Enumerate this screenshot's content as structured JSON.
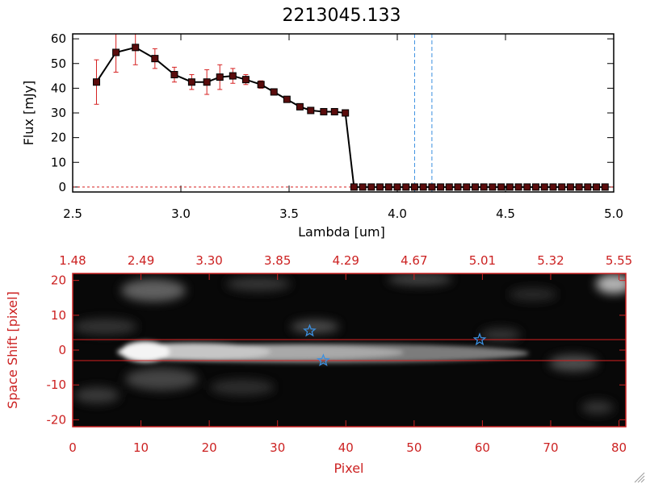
{
  "chart_data": [
    {
      "type": "line",
      "title": "2213045.133",
      "xlabel": "Lambda [um]",
      "ylabel": "Flux [mJy]",
      "xlim": [
        2.5,
        5.0
      ],
      "ylim": [
        -2,
        62
      ],
      "x_ticks": [
        "2.5",
        "3.0",
        "3.5",
        "4.0",
        "4.5",
        "5.0"
      ],
      "y_ticks": [
        "0",
        "10",
        "20",
        "30",
        "40",
        "50",
        "60"
      ],
      "series": [
        {
          "x": [
            2.61,
            2.7,
            2.79,
            2.88,
            2.97,
            3.05,
            3.12,
            3.18,
            3.24,
            3.3,
            3.37,
            3.43,
            3.49,
            3.55,
            3.6,
            3.66,
            3.71,
            3.76,
            3.8,
            3.84,
            3.88,
            3.92,
            3.96,
            4.0,
            4.04,
            4.08,
            4.12,
            4.16,
            4.2,
            4.24,
            4.28,
            4.32,
            4.36,
            4.4,
            4.44,
            4.48,
            4.52,
            4.56,
            4.6,
            4.64,
            4.68,
            4.72,
            4.76,
            4.8,
            4.84,
            4.88,
            4.92,
            4.96
          ],
          "y": [
            42.5,
            54.5,
            56.5,
            52.0,
            45.5,
            42.5,
            42.5,
            44.5,
            45.0,
            43.5,
            41.5,
            38.5,
            35.5,
            32.5,
            31.0,
            30.5,
            30.5,
            30.0,
            0,
            0,
            0,
            0,
            0,
            0,
            0,
            0,
            0,
            0,
            0,
            0,
            0,
            0,
            0,
            0,
            0,
            0,
            0,
            0,
            0,
            0,
            0,
            0,
            0,
            0,
            0,
            0,
            0,
            0
          ],
          "yerr": [
            9.0,
            8.0,
            7.0,
            4.0,
            3.0,
            3.0,
            5.0,
            5.0,
            3.0,
            2.0,
            1.5,
            1.0,
            1.0,
            1.0,
            1.0,
            0.8,
            0.8,
            0.8,
            0,
            0,
            0,
            0,
            0,
            0,
            0,
            0,
            0,
            0,
            0,
            0,
            0,
            0,
            0,
            0,
            0,
            0,
            0,
            0,
            0,
            0,
            0,
            0,
            0,
            0,
            0,
            0,
            0,
            0
          ]
        }
      ],
      "vlines": [
        4.08,
        4.16
      ],
      "hline": 0,
      "colors": {
        "line": "#000000",
        "marker": "#5a0c0c",
        "errorbar": "#d62020",
        "vline": "#3b8fe0",
        "hline": "#d62020"
      }
    },
    {
      "type": "heatmap",
      "xlabel": "Pixel",
      "ylabel": "Space Shift [pixel]",
      "top_xlabel_ticks": [
        "1.48",
        "2.49",
        "3.30",
        "3.85",
        "4.29",
        "4.67",
        "5.01",
        "5.32",
        "5.55"
      ],
      "x_ticks": [
        "0",
        "10",
        "20",
        "30",
        "40",
        "50",
        "60",
        "70",
        "80"
      ],
      "y_ticks": [
        "-20",
        "-10",
        "0",
        "10",
        "20"
      ],
      "xlim": [
        0,
        81
      ],
      "ylim": [
        -22,
        22
      ],
      "hlines": [
        3,
        -3
      ],
      "stars": [
        {
          "x": 34.7,
          "y": 5.5
        },
        {
          "x": 36.7,
          "y": -3.0
        },
        {
          "x": 59.6,
          "y": 3.0
        }
      ],
      "colors": {
        "axis": "#cc2222",
        "star": "#3b8fe0",
        "hline": "#d62020"
      }
    }
  ]
}
